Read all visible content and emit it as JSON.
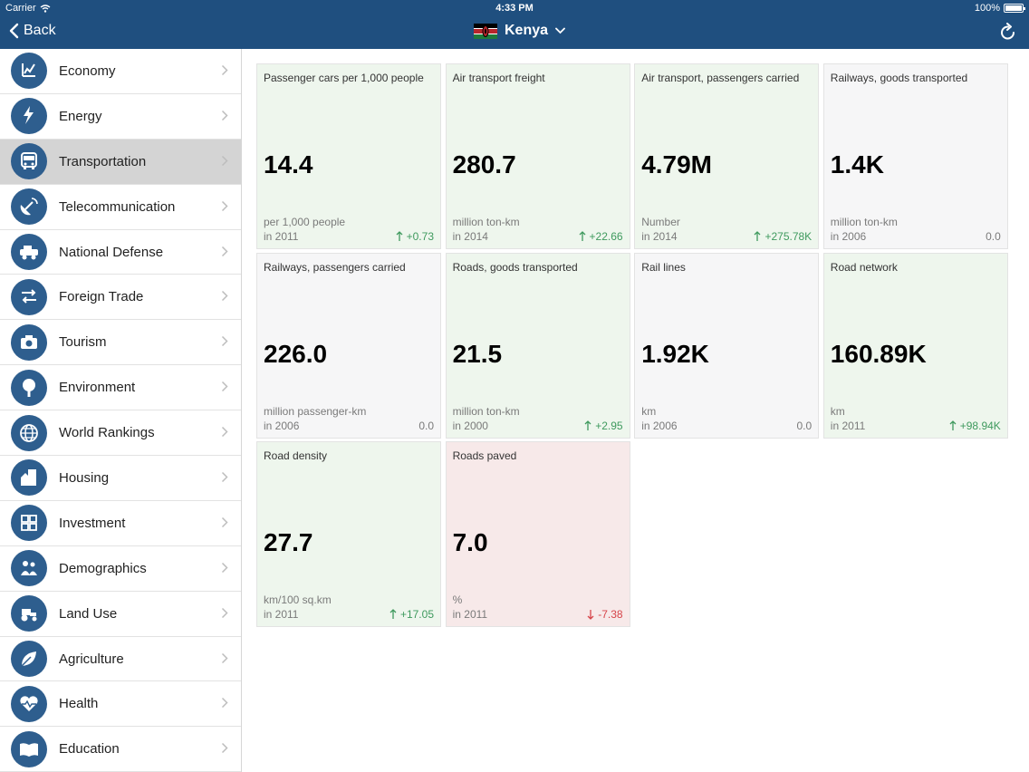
{
  "status_bar": {
    "carrier": "Carrier",
    "time": "4:33 PM",
    "battery": "100%"
  },
  "nav": {
    "back_label": "Back",
    "country": "Kenya"
  },
  "sidebar": {
    "items": [
      {
        "label": "Economy",
        "icon": "economy-chart-icon"
      },
      {
        "label": "Energy",
        "icon": "lightning-icon"
      },
      {
        "label": "Transportation",
        "icon": "bus-icon",
        "selected": true
      },
      {
        "label": "Telecommunication",
        "icon": "satellite-dish-icon"
      },
      {
        "label": "National Defense",
        "icon": "military-vehicle-icon"
      },
      {
        "label": "Foreign Trade",
        "icon": "exchange-icon"
      },
      {
        "label": "Tourism",
        "icon": "camera-icon"
      },
      {
        "label": "Environment",
        "icon": "tree-icon"
      },
      {
        "label": "World Rankings",
        "icon": "globe-icon"
      },
      {
        "label": "Housing",
        "icon": "buildings-icon"
      },
      {
        "label": "Investment",
        "icon": "grid-icon"
      },
      {
        "label": "Demographics",
        "icon": "people-icon"
      },
      {
        "label": "Land Use",
        "icon": "tractor-icon"
      },
      {
        "label": "Agriculture",
        "icon": "leaf-icon"
      },
      {
        "label": "Health",
        "icon": "heart-pulse-icon"
      },
      {
        "label": "Education",
        "icon": "book-icon"
      }
    ]
  },
  "colors": {
    "header": "#1f4f7f",
    "icon_circle": "#2e5e8e",
    "up": "#3f9a5e",
    "down": "#d6454a",
    "tile_up_bg": "#eef6ed",
    "tile_flat_bg": "#f6f6f7",
    "tile_down_bg": "#f7e9e9"
  },
  "tiles": [
    {
      "title": "Passenger cars per 1,000 people",
      "value": "14.4",
      "unit": "per 1,000 people",
      "year": "in 2011",
      "change": "+0.73",
      "trend": "up"
    },
    {
      "title": "Air transport freight",
      "value": "280.7",
      "unit": "million ton-km",
      "year": "in 2014",
      "change": "+22.66",
      "trend": "up"
    },
    {
      "title": "Air transport, passengers carried",
      "value": "4.79M",
      "unit": "Number",
      "year": "in 2014",
      "change": "+275.78K",
      "trend": "up"
    },
    {
      "title": "Railways, goods transported",
      "value": "1.4K",
      "unit": "million ton-km",
      "year": "in 2006",
      "change": "0.0",
      "trend": "flat"
    },
    {
      "title": "Railways, passengers carried",
      "value": "226.0",
      "unit": "million passenger-km",
      "year": "in 2006",
      "change": "0.0",
      "trend": "flat"
    },
    {
      "title": "Roads, goods transported",
      "value": "21.5",
      "unit": "million ton-km",
      "year": "in 2000",
      "change": "+2.95",
      "trend": "up"
    },
    {
      "title": "Rail lines",
      "value": "1.92K",
      "unit": "km",
      "year": "in 2006",
      "change": "0.0",
      "trend": "flat"
    },
    {
      "title": "Road network",
      "value": "160.89K",
      "unit": "km",
      "year": "in 2011",
      "change": "+98.94K",
      "trend": "up"
    },
    {
      "title": "Road density",
      "value": "27.7",
      "unit": "km/100 sq.km",
      "year": "in 2011",
      "change": "+17.05",
      "trend": "up"
    },
    {
      "title": "Roads paved",
      "value": "7.0",
      "unit": "%",
      "year": "in 2011",
      "change": "-7.38",
      "trend": "down"
    }
  ]
}
